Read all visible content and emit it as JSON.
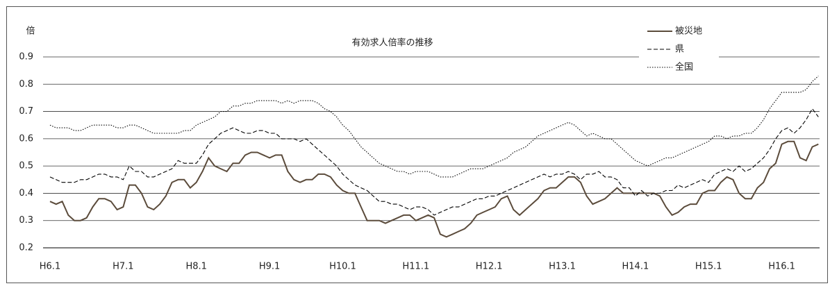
{
  "chart_data": {
    "type": "line",
    "title": "有効求人倍率の推移",
    "y_label": "倍",
    "categories": [
      "H6.1",
      null,
      null,
      null,
      null,
      null,
      null,
      null,
      null,
      null,
      null,
      null,
      "H7.1",
      null,
      null,
      null,
      null,
      null,
      null,
      null,
      null,
      null,
      null,
      null,
      "H8.1",
      null,
      null,
      null,
      null,
      null,
      null,
      null,
      null,
      null,
      null,
      null,
      "H9.1",
      null,
      null,
      null,
      null,
      null,
      null,
      null,
      null,
      null,
      null,
      null,
      "H10.1",
      null,
      null,
      null,
      null,
      null,
      null,
      null,
      null,
      null,
      null,
      null,
      "H11.1",
      null,
      null,
      null,
      null,
      null,
      null,
      null,
      null,
      null,
      null,
      null,
      "H12.1",
      null,
      null,
      null,
      null,
      null,
      null,
      null,
      null,
      null,
      null,
      null,
      "H13.1",
      null,
      null,
      null,
      null,
      null,
      null,
      null,
      null,
      null,
      null,
      null,
      "H14.1",
      null,
      null,
      null,
      null,
      null,
      null,
      null,
      null,
      null,
      null,
      null,
      "H15.1",
      null,
      null,
      null,
      null,
      null,
      null,
      null,
      null,
      null,
      null,
      null,
      "H16.1",
      null,
      null,
      null,
      null,
      null,
      null
    ],
    "series": [
      {
        "name": "被災地",
        "color": "#5b4b3b",
        "dash": "solid",
        "values": [
          0.37,
          0.36,
          0.37,
          0.32,
          0.3,
          0.3,
          0.31,
          0.35,
          0.38,
          0.38,
          0.37,
          0.34,
          0.35,
          0.43,
          0.43,
          0.4,
          0.35,
          0.34,
          0.36,
          0.39,
          0.44,
          0.45,
          0.45,
          0.42,
          0.44,
          0.48,
          0.53,
          0.5,
          0.49,
          0.48,
          0.51,
          0.51,
          0.54,
          0.55,
          0.55,
          0.54,
          0.53,
          0.54,
          0.54,
          0.48,
          0.45,
          0.44,
          0.45,
          0.45,
          0.47,
          0.47,
          0.46,
          0.43,
          0.41,
          0.4,
          0.4,
          0.35,
          0.3,
          0.3,
          0.3,
          0.29,
          0.3,
          0.31,
          0.32,
          0.32,
          0.3,
          0.31,
          0.32,
          0.31,
          0.25,
          0.24,
          0.25,
          0.26,
          0.27,
          0.29,
          0.32,
          0.33,
          0.34,
          0.35,
          0.38,
          0.39,
          0.34,
          0.32,
          0.34,
          0.36,
          0.38,
          0.41,
          0.42,
          0.42,
          0.44,
          0.46,
          0.46,
          0.44,
          0.39,
          0.36,
          0.37,
          0.38,
          0.4,
          0.42,
          0.4,
          0.4,
          0.4,
          0.4,
          0.4,
          0.4,
          0.39,
          0.35,
          0.32,
          0.33,
          0.35,
          0.36,
          0.36,
          0.4,
          0.41,
          0.41,
          0.44,
          0.46,
          0.45,
          0.4,
          0.38,
          0.38,
          0.42,
          0.44,
          0.49,
          0.51,
          0.58,
          0.59,
          0.59,
          0.53,
          0.52,
          0.57,
          0.58
        ]
      },
      {
        "name": "県",
        "color": "#000000",
        "dash": "dashed",
        "values": [
          0.46,
          0.45,
          0.44,
          0.44,
          0.44,
          0.45,
          0.45,
          0.46,
          0.47,
          0.47,
          0.46,
          0.46,
          0.45,
          0.5,
          0.48,
          0.48,
          0.46,
          0.46,
          0.47,
          0.48,
          0.49,
          0.52,
          0.51,
          0.51,
          0.51,
          0.54,
          0.58,
          0.6,
          0.62,
          0.63,
          0.64,
          0.63,
          0.62,
          0.62,
          0.63,
          0.63,
          0.62,
          0.62,
          0.6,
          0.6,
          0.6,
          0.59,
          0.6,
          0.58,
          0.56,
          0.54,
          0.52,
          0.5,
          0.47,
          0.45,
          0.43,
          0.42,
          0.41,
          0.39,
          0.37,
          0.37,
          0.36,
          0.36,
          0.35,
          0.34,
          0.35,
          0.35,
          0.34,
          0.32,
          0.33,
          0.34,
          0.35,
          0.35,
          0.36,
          0.37,
          0.38,
          0.38,
          0.39,
          0.39,
          0.4,
          0.41,
          0.42,
          0.43,
          0.44,
          0.45,
          0.46,
          0.47,
          0.46,
          0.47,
          0.47,
          0.48,
          0.47,
          0.45,
          0.47,
          0.47,
          0.48,
          0.46,
          0.46,
          0.45,
          0.42,
          0.42,
          0.39,
          0.41,
          0.39,
          0.4,
          0.4,
          0.41,
          0.41,
          0.43,
          0.42,
          0.43,
          0.44,
          0.45,
          0.44,
          0.47,
          0.48,
          0.49,
          0.48,
          0.5,
          0.48,
          0.49,
          0.51,
          0.53,
          0.56,
          0.6,
          0.63,
          0.64,
          0.62,
          0.64,
          0.67,
          0.71,
          0.68
        ]
      },
      {
        "name": "全国",
        "color": "#000000",
        "dash": "dotted",
        "values": [
          0.65,
          0.64,
          0.64,
          0.64,
          0.63,
          0.63,
          0.64,
          0.65,
          0.65,
          0.65,
          0.65,
          0.64,
          0.64,
          0.65,
          0.65,
          0.64,
          0.63,
          0.62,
          0.62,
          0.62,
          0.62,
          0.62,
          0.63,
          0.63,
          0.65,
          0.66,
          0.67,
          0.68,
          0.7,
          0.7,
          0.72,
          0.72,
          0.73,
          0.73,
          0.74,
          0.74,
          0.74,
          0.74,
          0.73,
          0.74,
          0.73,
          0.74,
          0.74,
          0.74,
          0.73,
          0.71,
          0.7,
          0.68,
          0.65,
          0.63,
          0.6,
          0.57,
          0.55,
          0.53,
          0.51,
          0.5,
          0.49,
          0.48,
          0.48,
          0.47,
          0.48,
          0.48,
          0.48,
          0.47,
          0.46,
          0.46,
          0.46,
          0.47,
          0.48,
          0.49,
          0.49,
          0.49,
          0.5,
          0.51,
          0.52,
          0.53,
          0.55,
          0.56,
          0.57,
          0.59,
          0.61,
          0.62,
          0.63,
          0.64,
          0.65,
          0.66,
          0.65,
          0.63,
          0.61,
          0.62,
          0.61,
          0.6,
          0.6,
          0.58,
          0.56,
          0.54,
          0.52,
          0.51,
          0.5,
          0.51,
          0.52,
          0.53,
          0.53,
          0.54,
          0.55,
          0.56,
          0.57,
          0.58,
          0.59,
          0.61,
          0.61,
          0.6,
          0.61,
          0.61,
          0.62,
          0.62,
          0.64,
          0.67,
          0.71,
          0.74,
          0.77,
          0.77,
          0.77,
          0.77,
          0.78,
          0.81,
          0.83
        ]
      }
    ],
    "ylim": [
      0.2,
      0.9
    ],
    "yticks": [
      0.2,
      0.3,
      0.4,
      0.5,
      0.6,
      0.7,
      0.8,
      0.9
    ],
    "grid": true
  }
}
